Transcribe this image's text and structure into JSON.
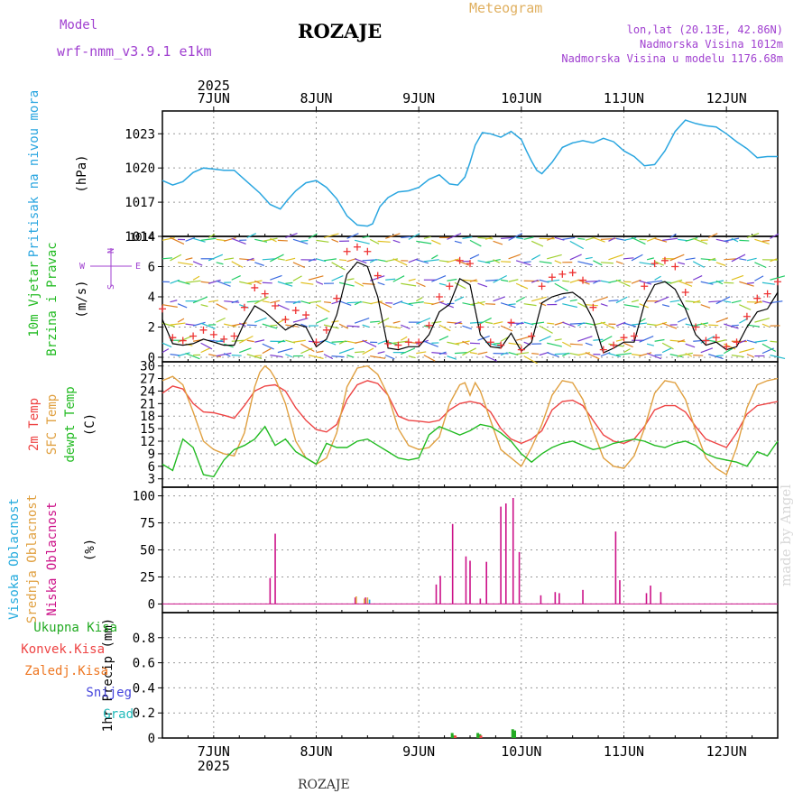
{
  "header": {
    "model_label": "Model",
    "model_name": "wrf-nmm_v3.9.1  e1km",
    "title": "ROZAJE",
    "subtitle": "Meteogram",
    "location": "lon,lat (20.13E, 42.86N)",
    "elevation": "Nadmorska Visina 1012m",
    "model_elevation": "Nadmorska Visina u modelu 1176.68m"
  },
  "credit": "made by Angel",
  "footer_station": "ROZAJE",
  "colors": {
    "pressure": "#2aa6e0",
    "temp2m": "#ee4444",
    "sfc": "#e0a040",
    "dewpt": "#22bb22",
    "high_cloud": "#22aadd",
    "mid_cloud": "#e0a040",
    "low_cloud": "#cc1188",
    "total_precip": "#22aa22",
    "conv_precip": "#ee4444",
    "frz_precip": "#ee7722",
    "snow": "#4444dd",
    "hail": "#22bbbb",
    "wind_speed": "#000000",
    "gust": "#ee3333",
    "axis_label_purple": "#a040d0"
  },
  "chart_data": [
    {
      "type": "line",
      "panel": "pressure",
      "ylabel_lines": [
        "Pritisak na nivou mora",
        "(hPa)"
      ],
      "x_unit": "days since 7JUN 2025 00:00",
      "xlim": [
        -0.5,
        5.5
      ],
      "ylim": [
        1014,
        1025
      ],
      "yticks": [
        1014,
        1017,
        1020,
        1023
      ],
      "x_ticks": [
        {
          "x": 0,
          "label": "7JUN"
        },
        {
          "x": 1,
          "label": "8JUN"
        },
        {
          "x": 2,
          "label": "9JUN"
        },
        {
          "x": 3,
          "label": "10JUN"
        },
        {
          "x": 4,
          "label": "11JUN"
        },
        {
          "x": 5,
          "label": "12JUN"
        }
      ],
      "top_year": "2025",
      "series": [
        {
          "name": "Pritisak na nivou mora",
          "color": "#2aa6e0",
          "x": [
            -0.5,
            -0.4,
            -0.3,
            -0.2,
            -0.1,
            0,
            0.1,
            0.2,
            0.3,
            0.45,
            0.55,
            0.65,
            0.72,
            0.8,
            0.9,
            1,
            1.1,
            1.2,
            1.3,
            1.4,
            1.5,
            1.55,
            1.62,
            1.7,
            1.8,
            1.9,
            2,
            2.1,
            2.2,
            2.3,
            2.38,
            2.45,
            2.5,
            2.55,
            2.62,
            2.7,
            2.8,
            2.9,
            3,
            3.05,
            3.1,
            3.15,
            3.2,
            3.3,
            3.4,
            3.5,
            3.6,
            3.7,
            3.8,
            3.9,
            4,
            4.1,
            4.2,
            4.3,
            4.4,
            4.5,
            4.6,
            4.7,
            4.8,
            4.9,
            5,
            5.1,
            5.2,
            5.3,
            5.4,
            5.5
          ],
          "y": [
            1018.9,
            1018.5,
            1018.8,
            1019.6,
            1020.0,
            1019.9,
            1019.8,
            1019.8,
            1019.0,
            1017.8,
            1016.8,
            1016.4,
            1017.2,
            1018.0,
            1018.7,
            1018.9,
            1018.3,
            1017.3,
            1015.8,
            1015.0,
            1014.9,
            1015.1,
            1016.6,
            1017.4,
            1017.9,
            1018.0,
            1018.3,
            1019.0,
            1019.4,
            1018.6,
            1018.5,
            1019.2,
            1020.5,
            1022.0,
            1023.1,
            1023.0,
            1022.7,
            1023.2,
            1022.5,
            1021.5,
            1020.6,
            1019.8,
            1019.5,
            1020.5,
            1021.8,
            1022.2,
            1022.4,
            1022.2,
            1022.6,
            1022.3,
            1021.5,
            1021.0,
            1020.2,
            1020.3,
            1021.5,
            1023.2,
            1024.2,
            1023.9,
            1023.7,
            1023.6,
            1023.0,
            1022.3,
            1021.7,
            1020.9,
            1021.0,
            1021.0
          ]
        }
      ]
    },
    {
      "type": "line",
      "panel": "wind",
      "ylabel_lines": [
        "10m Vjetar",
        "Brzina i Pravac",
        "(m/s)"
      ],
      "compass_labels": {
        "north": "N",
        "south": "S",
        "west": "W",
        "east": "E"
      },
      "ylim": [
        -0.3,
        8
      ],
      "yticks": [
        0,
        2,
        4,
        6
      ],
      "top_value_label": "1014",
      "series": [
        {
          "name": "10m brzina",
          "color": "#000000",
          "x": [
            -0.5,
            -0.4,
            -0.3,
            -0.2,
            -0.1,
            0,
            0.1,
            0.2,
            0.3,
            0.4,
            0.5,
            0.6,
            0.7,
            0.8,
            0.9,
            1,
            1.1,
            1.2,
            1.3,
            1.4,
            1.5,
            1.6,
            1.7,
            1.8,
            1.9,
            2,
            2.1,
            2.2,
            2.3,
            2.4,
            2.5,
            2.6,
            2.7,
            2.8,
            2.9,
            3,
            3.1,
            3.2,
            3.3,
            3.4,
            3.5,
            3.6,
            3.7,
            3.8,
            3.9,
            4,
            4.1,
            4.2,
            4.3,
            4.4,
            4.5,
            4.6,
            4.7,
            4.8,
            4.9,
            5,
            5.1,
            5.2,
            5.3,
            5.4,
            5.5
          ],
          "y": [
            2.5,
            0.9,
            0.8,
            0.9,
            1.2,
            1.0,
            0.8,
            0.8,
            2.3,
            3.4,
            3.0,
            2.4,
            1.8,
            2.2,
            2.0,
            0.7,
            1.2,
            2.8,
            5.5,
            6.3,
            6.0,
            4.0,
            0.6,
            0.5,
            0.7,
            0.7,
            1.5,
            3.0,
            3.5,
            5.2,
            4.8,
            1.5,
            0.7,
            0.6,
            1.6,
            0.4,
            1.0,
            3.6,
            4.0,
            4.2,
            4.3,
            3.8,
            2.5,
            0.3,
            0.6,
            1.0,
            1.0,
            3.5,
            4.8,
            5.0,
            4.5,
            3.2,
            1.5,
            0.8,
            1.0,
            0.5,
            0.7,
            2.0,
            3.0,
            3.2,
            4.3
          ]
        },
        {
          "name": "udar vjetra",
          "color": "#ee3333",
          "x": [
            -0.5,
            -0.4,
            -0.3,
            -0.2,
            -0.1,
            0,
            0.1,
            0.2,
            0.3,
            0.4,
            0.5,
            0.6,
            0.7,
            0.8,
            0.9,
            1,
            1.1,
            1.2,
            1.3,
            1.4,
            1.5,
            1.6,
            1.7,
            1.8,
            1.9,
            2,
            2.1,
            2.2,
            2.3,
            2.4,
            2.5,
            2.6,
            2.7,
            2.8,
            2.9,
            3,
            3.1,
            3.2,
            3.3,
            3.4,
            3.5,
            3.6,
            3.7,
            3.8,
            3.9,
            4,
            4.1,
            4.2,
            4.3,
            4.4,
            4.5,
            4.6,
            4.7,
            4.8,
            4.9,
            5,
            5.1,
            5.2,
            5.3,
            5.4,
            5.5
          ],
          "y": [
            3.2,
            1.3,
            1.1,
            1.4,
            1.8,
            1.5,
            1.2,
            1.4,
            3.3,
            4.6,
            4.2,
            3.4,
            2.5,
            3.1,
            2.8,
            1.0,
            1.8,
            3.9,
            7.0,
            7.3,
            7.0,
            5.4,
            0.9,
            0.8,
            1.0,
            1.0,
            2.1,
            4.0,
            4.7,
            6.4,
            6.2,
            2.0,
            1.0,
            0.8,
            2.3,
            0.5,
            1.4,
            4.7,
            5.3,
            5.5,
            5.6,
            5.1,
            3.3,
            0.5,
            0.8,
            1.3,
            1.4,
            4.7,
            6.2,
            6.4,
            6.0,
            4.3,
            2.0,
            1.1,
            1.3,
            0.7,
            1.0,
            2.7,
            3.9,
            4.2,
            5.0
          ]
        }
      ]
    },
    {
      "type": "line",
      "panel": "temperature",
      "ylabel_lines": [
        "2m Temp",
        "SFC Temp",
        "dewpt Temp",
        "(C)"
      ],
      "ylim": [
        1,
        31
      ],
      "yticks": [
        3,
        6,
        9,
        12,
        15,
        18,
        21,
        24,
        27,
        30
      ],
      "series": [
        {
          "name": "2m Temp",
          "color": "#ee4444",
          "x": [
            -0.5,
            -0.4,
            -0.3,
            -0.2,
            -0.1,
            0,
            0.1,
            0.2,
            0.3,
            0.4,
            0.5,
            0.6,
            0.7,
            0.8,
            0.9,
            1,
            1.1,
            1.2,
            1.3,
            1.4,
            1.5,
            1.6,
            1.7,
            1.8,
            1.9,
            2,
            2.1,
            2.2,
            2.3,
            2.4,
            2.5,
            2.6,
            2.7,
            2.8,
            2.9,
            3,
            3.1,
            3.2,
            3.3,
            3.4,
            3.5,
            3.6,
            3.7,
            3.8,
            3.9,
            4,
            4.1,
            4.2,
            4.3,
            4.4,
            4.5,
            4.6,
            4.7,
            4.8,
            4.9,
            5,
            5.1,
            5.2,
            5.3,
            5.4,
            5.5
          ],
          "y": [
            23.5,
            25.2,
            24.5,
            21.0,
            19.0,
            18.8,
            18.2,
            17.5,
            20.5,
            24.0,
            25.2,
            25.5,
            24.0,
            20.0,
            17.0,
            14.8,
            14.2,
            16.0,
            22.0,
            25.5,
            26.5,
            25.8,
            23.0,
            18.0,
            17.0,
            16.8,
            16.5,
            17.0,
            19.5,
            21.0,
            21.5,
            21.0,
            19.0,
            15.0,
            12.5,
            11.5,
            12.5,
            14.5,
            19.5,
            21.5,
            21.8,
            20.5,
            17.0,
            13.5,
            12.0,
            11.5,
            12.5,
            15.5,
            19.5,
            20.5,
            20.5,
            19.0,
            15.5,
            12.5,
            11.5,
            10.5,
            14.0,
            18.5,
            20.5,
            21.0,
            21.5
          ]
        },
        {
          "name": "SFC Temp",
          "color": "#e0a040",
          "x": [
            -0.5,
            -0.4,
            -0.3,
            -0.2,
            -0.1,
            0,
            0.1,
            0.2,
            0.3,
            0.4,
            0.45,
            0.5,
            0.55,
            0.6,
            0.7,
            0.8,
            0.9,
            1,
            1.1,
            1.2,
            1.3,
            1.4,
            1.5,
            1.6,
            1.7,
            1.8,
            1.9,
            2,
            2.1,
            2.2,
            2.3,
            2.4,
            2.45,
            2.5,
            2.55,
            2.6,
            2.7,
            2.8,
            2.9,
            3,
            3.1,
            3.2,
            3.3,
            3.4,
            3.5,
            3.6,
            3.7,
            3.8,
            3.9,
            4,
            4.1,
            4.2,
            4.3,
            4.4,
            4.5,
            4.6,
            4.7,
            4.8,
            4.9,
            5,
            5.1,
            5.2,
            5.3,
            5.4,
            5.5
          ],
          "y": [
            26.5,
            27.5,
            25.5,
            19.0,
            12.0,
            10.0,
            9.0,
            8.5,
            14.0,
            25.0,
            28.5,
            30.0,
            29.0,
            27.0,
            21.0,
            12.0,
            8.0,
            6.5,
            8.0,
            14.0,
            25.0,
            29.5,
            30.0,
            28.0,
            23.0,
            15.0,
            11.0,
            10.0,
            10.5,
            13.0,
            21.0,
            25.5,
            26.0,
            23.0,
            26.0,
            24.0,
            17.0,
            10.0,
            8.0,
            6.0,
            10.5,
            16.0,
            23.0,
            26.5,
            26.0,
            22.0,
            14.5,
            8.0,
            6.0,
            5.5,
            8.5,
            15.0,
            23.5,
            26.5,
            26.0,
            22.0,
            14.5,
            8.0,
            5.5,
            4.0,
            10.5,
            20.0,
            25.5,
            26.5,
            27.0
          ]
        },
        {
          "name": "dewpt Temp",
          "color": "#22bb22",
          "x": [
            -0.5,
            -0.4,
            -0.3,
            -0.2,
            -0.1,
            0,
            0.1,
            0.2,
            0.3,
            0.4,
            0.5,
            0.6,
            0.7,
            0.8,
            0.9,
            1,
            1.1,
            1.2,
            1.3,
            1.4,
            1.5,
            1.6,
            1.7,
            1.8,
            1.9,
            2,
            2.1,
            2.2,
            2.3,
            2.4,
            2.5,
            2.6,
            2.7,
            2.8,
            2.9,
            3,
            3.1,
            3.2,
            3.3,
            3.4,
            3.5,
            3.6,
            3.7,
            3.8,
            3.9,
            4,
            4.1,
            4.2,
            4.3,
            4.4,
            4.5,
            4.6,
            4.7,
            4.8,
            4.9,
            5,
            5.1,
            5.2,
            5.3,
            5.4,
            5.5
          ],
          "y": [
            6.5,
            5.0,
            12.5,
            10.5,
            4.0,
            3.5,
            7.5,
            10.0,
            11.0,
            12.5,
            15.5,
            11.0,
            12.5,
            9.5,
            8.0,
            6.5,
            11.5,
            10.5,
            10.5,
            12.0,
            12.5,
            11.0,
            9.5,
            8.0,
            7.5,
            8.0,
            13.5,
            15.5,
            14.5,
            13.5,
            14.5,
            16.0,
            15.5,
            14.0,
            12.0,
            9.0,
            7.0,
            9.0,
            10.5,
            11.5,
            12.0,
            11.0,
            10.0,
            10.5,
            11.5,
            12.0,
            12.5,
            12.0,
            11.0,
            10.5,
            11.5,
            12.0,
            11.0,
            9.0,
            8.0,
            7.5,
            7.0,
            6.0,
            9.5,
            8.5,
            12.0
          ]
        }
      ]
    },
    {
      "type": "bar",
      "panel": "clouds",
      "ylabel_lines": [
        "Visoka Oblacnost",
        "Srednja Oblacnost",
        "Niska Oblacnost",
        "(%)"
      ],
      "ylim": [
        -8,
        108
      ],
      "yticks": [
        0,
        25,
        50,
        75,
        100
      ],
      "series": [
        {
          "name": "Niska Oblacnost",
          "color": "#cc1188",
          "x": [
            0.55,
            0.6,
            1.38,
            1.48,
            2.17,
            2.21,
            2.33,
            2.46,
            2.5,
            2.6,
            2.66,
            2.8,
            2.85,
            2.92,
            2.98,
            3.19,
            3.33,
            3.37,
            3.6,
            3.92,
            3.96,
            4.22,
            4.26,
            4.36
          ],
          "values": [
            24,
            65,
            6,
            6,
            18,
            26,
            74,
            44,
            40,
            5,
            39,
            90,
            93,
            98,
            48,
            8,
            11,
            10,
            13,
            67,
            22,
            10,
            17,
            11
          ]
        },
        {
          "name": "Srednja Oblacnost",
          "color": "#e0a040",
          "x": [
            1.39,
            1.47,
            1.5
          ],
          "values": [
            7,
            5,
            6
          ]
        },
        {
          "name": "Visoka Oblacnost",
          "color": "#22aadd",
          "x": [
            1.52
          ],
          "values": [
            4
          ]
        }
      ]
    },
    {
      "type": "bar",
      "panel": "precip",
      "ylabel_lines": [
        "1hr Precip (mm)"
      ],
      "legend": [
        "Ukupna Kisa",
        "Konvek.Kisa",
        "Zaledj.Kisa",
        "Snijeg",
        "Grad"
      ],
      "ylim": [
        0,
        1.0
      ],
      "yticks": [
        0,
        0.2,
        0.4,
        0.6,
        0.8
      ],
      "bottom_year": "2025",
      "series": [
        {
          "name": "Ukupna Kisa",
          "color": "#22aa22",
          "x": [
            2.33,
            2.35,
            2.58,
            2.6,
            2.92,
            2.94
          ],
          "values": [
            0.04,
            0.02,
            0.04,
            0.03,
            0.07,
            0.06
          ]
        },
        {
          "name": "Konvek.Kisa",
          "color": "#ee4444",
          "x": [
            2.36,
            2.61
          ],
          "values": [
            0.02,
            0.02
          ]
        }
      ]
    }
  ]
}
